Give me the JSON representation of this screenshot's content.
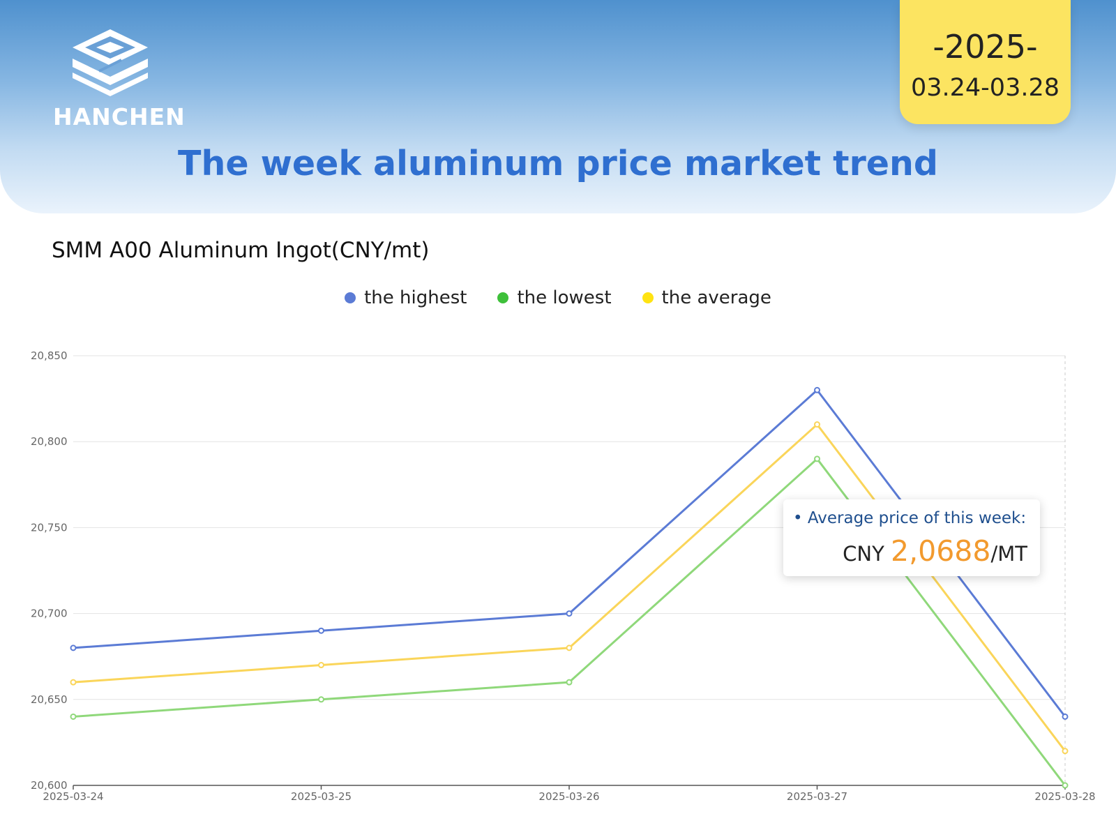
{
  "header": {
    "logo_text": "HANCHEN",
    "year": "-2025-",
    "date_range": "03.24-03.28",
    "title": "The week aluminum price market trend"
  },
  "chart_subtitle": "SMM A00 Aluminum Ingot(CNY/mt)",
  "colors": {
    "highest": "#5b7bd5",
    "lowest": "#8fd87a",
    "average": "#fad55a",
    "legend_lowest_dot": "#3ec03a",
    "legend_average_dot": "#ffe312",
    "title": "#2f6fd0",
    "badge": "#fce461",
    "accent_number": "#f29a2e"
  },
  "legend": [
    {
      "label": "the highest",
      "color": "#5b7bd5"
    },
    {
      "label": "the lowest",
      "color": "#3ec03a"
    },
    {
      "label": "the average",
      "color": "#ffe312"
    }
  ],
  "info_box": {
    "label": "• Average price of this week:",
    "prefix": "CNY ",
    "number": "2,0688",
    "suffix": "/MT"
  },
  "chart_data": {
    "type": "line",
    "title": "SMM A00 Aluminum Ingot(CNY/mt)",
    "x": [
      "2025-03-24",
      "2025-03-25",
      "2025-03-26",
      "2025-03-27",
      "2025-03-28"
    ],
    "series": [
      {
        "name": "the highest",
        "values": [
          20680,
          20690,
          20700,
          20830,
          20640
        ]
      },
      {
        "name": "the lowest",
        "values": [
          20640,
          20650,
          20660,
          20790,
          20600
        ]
      },
      {
        "name": "the average",
        "values": [
          20660,
          20670,
          20680,
          20810,
          20620
        ]
      }
    ],
    "ylim": [
      20600,
      20850
    ],
    "yticks": [
      "20,600",
      "20,650",
      "20,700",
      "20,750",
      "20,800",
      "20,850"
    ],
    "grid": true,
    "legend_position": "top-center"
  }
}
